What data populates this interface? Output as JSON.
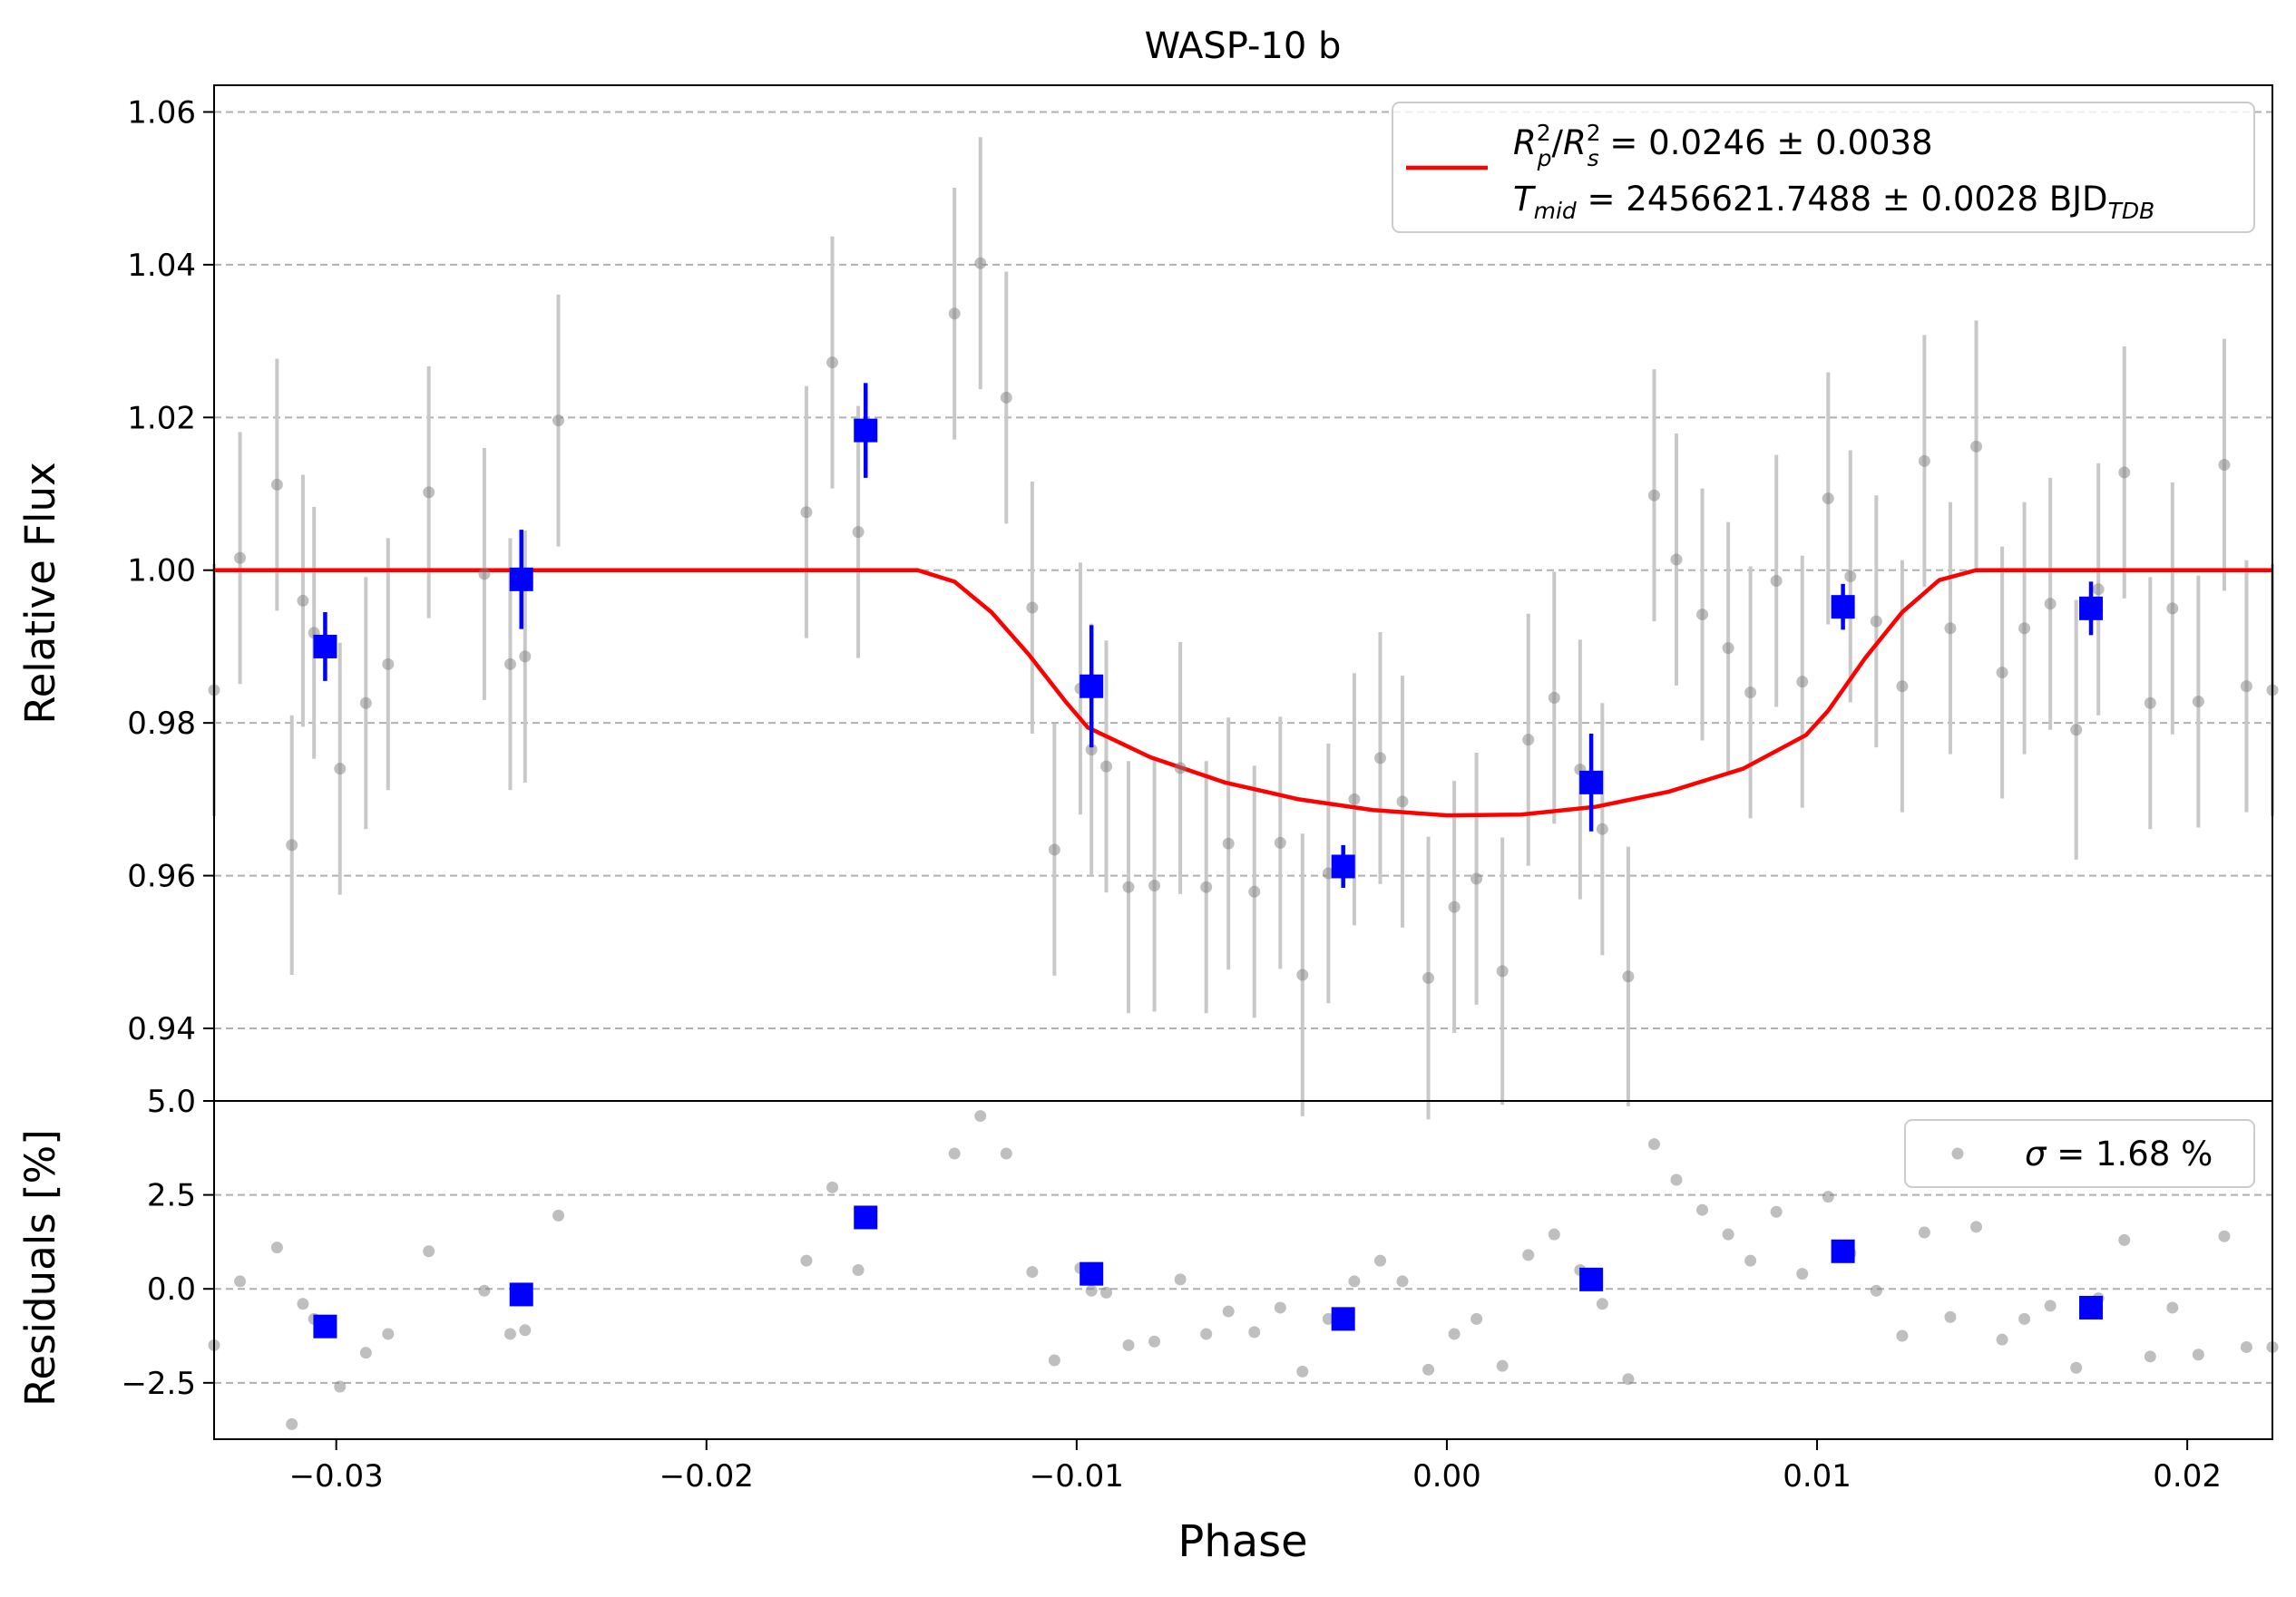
{
  "chart_data": {
    "type": "scatter",
    "title": "WASP-10 b",
    "xlabel": "Phase",
    "xlim": [
      -0.0333,
      0.0223
    ],
    "xticks": [
      -0.03,
      -0.02,
      -0.01,
      0.0,
      0.01,
      0.02
    ],
    "xtick_labels": [
      "−0.03",
      "−0.02",
      "−0.01",
      "0.00",
      "0.01",
      "0.02"
    ],
    "grid": "horizontal dashed",
    "colors": {
      "raw": "#808080",
      "binned": "#0000ff",
      "model": "#ff0000",
      "errbar": "#c8c8c8"
    },
    "top_panel": {
      "ylabel": "Relative Flux",
      "ylim": [
        0.9305,
        1.0635
      ],
      "yticks": [
        0.94,
        0.96,
        0.98,
        1.0,
        1.02,
        1.04,
        1.06
      ],
      "ytick_labels": [
        "0.94",
        "0.96",
        "0.98",
        "1.00",
        "1.02",
        "1.04",
        "1.06"
      ],
      "legend_position": "top-right",
      "legend_line1": {
        "lhs": "R",
        "lhs_sub": "p",
        "lhs_sup": "2",
        "den": "R",
        "den_sub": "s",
        "den_sup": "2",
        "rhs": " = 0.0246 ± 0.0038"
      },
      "legend_line2": {
        "lhs": "T",
        "lhs_sub": "mid",
        "rhs": " = 2456621.7488 ± 0.0028 BJD",
        "rhs_sub": "TDB"
      },
      "model": {
        "name": "transit model",
        "x": [
          -0.0333,
          -0.0143,
          -0.0133,
          -0.0123,
          -0.0113,
          -0.0103,
          -0.0097,
          -0.008,
          -0.006,
          -0.004,
          -0.002,
          0.0,
          0.002,
          0.004,
          0.006,
          0.008,
          0.0097,
          0.0103,
          0.0113,
          0.0123,
          0.0133,
          0.0143,
          0.0223
        ],
        "y": [
          1.0,
          1.0,
          0.9985,
          0.9945,
          0.989,
          0.9828,
          0.9794,
          0.9755,
          0.9722,
          0.97,
          0.9686,
          0.9679,
          0.968,
          0.969,
          0.971,
          0.974,
          0.9784,
          0.9816,
          0.9885,
          0.9945,
          0.9987,
          1.0,
          1.0
        ]
      },
      "raw": {
        "x": [
          -0.0333,
          -0.0326,
          -0.0316,
          -0.0312,
          -0.0309,
          -0.0306,
          -0.0299,
          -0.0292,
          -0.0286,
          -0.0275,
          -0.026,
          -0.0253,
          -0.0249,
          -0.024,
          -0.0173,
          -0.0166,
          -0.0159,
          -0.0133,
          -0.0126,
          -0.0119,
          -0.0112,
          -0.0106,
          -0.0099,
          -0.0096,
          -0.0092,
          -0.0086,
          -0.0079,
          -0.0072,
          -0.0065,
          -0.0059,
          -0.0052,
          -0.0045,
          -0.0039,
          -0.0032,
          -0.0025,
          -0.0018,
          -0.0012,
          -0.0005,
          0.0002,
          0.0008,
          0.0015,
          0.0022,
          0.0029,
          0.0036,
          0.0042,
          0.0049,
          0.0056,
          0.0062,
          0.0069,
          0.0076,
          0.0082,
          0.0089,
          0.0096,
          0.0103,
          0.0109,
          0.0116,
          0.0123,
          0.0129,
          0.0136,
          0.0143,
          0.015,
          0.0156,
          0.0163,
          0.017,
          0.0176,
          0.0183,
          0.019,
          0.0196,
          0.0203,
          0.021,
          0.0216,
          0.0223
        ],
        "y": [
          0.9843,
          1.0016,
          1.0112,
          0.964,
          0.996,
          0.9918,
          0.974,
          0.9826,
          0.9877,
          1.0102,
          0.9995,
          0.9877,
          0.9887,
          1.0196,
          1.0076,
          1.0272,
          1.005,
          1.0336,
          1.0402,
          1.0226,
          0.9951,
          0.9634,
          0.9845,
          0.9765,
          0.9743,
          0.9585,
          0.9587,
          0.9741,
          0.9585,
          0.9642,
          0.9579,
          0.9643,
          0.947,
          0.9603,
          0.97,
          0.9754,
          0.9697,
          0.9466,
          0.9559,
          0.9596,
          0.9475,
          0.9778,
          0.9833,
          0.9739,
          0.9661,
          0.9468,
          1.0098,
          1.0014,
          0.9942,
          0.9898,
          0.984,
          0.9986,
          0.9854,
          1.0094,
          0.9992,
          0.9933,
          0.9848,
          1.0143,
          0.9924,
          1.0162,
          0.9866,
          0.9924,
          0.9956,
          0.9791,
          0.9975,
          1.0128,
          0.9826,
          0.995,
          0.9828,
          1.0138,
          0.9848,
          0.9843
        ],
        "err": [
          0.0165,
          0.0165,
          0.0165,
          0.017,
          0.0165,
          0.0165,
          0.0165,
          0.0165,
          0.0165,
          0.0165,
          0.0165,
          0.0165,
          0.0165,
          0.0165,
          0.0165,
          0.0165,
          0.0165,
          0.0165,
          0.0165,
          0.0165,
          0.0165,
          0.0165,
          0.0165,
          0.0165,
          0.0165,
          0.0165,
          0.0165,
          0.0165,
          0.0165,
          0.0165,
          0.0165,
          0.0165,
          0.0185,
          0.017,
          0.0165,
          0.0165,
          0.0165,
          0.0185,
          0.0165,
          0.0165,
          0.0175,
          0.0165,
          0.0165,
          0.017,
          0.0165,
          0.017,
          0.0165,
          0.0165,
          0.0165,
          0.0165,
          0.0165,
          0.0165,
          0.0165,
          0.0165,
          0.0165,
          0.0165,
          0.0165,
          0.0165,
          0.0165,
          0.0165,
          0.0165,
          0.0165,
          0.0165,
          0.017,
          0.0165,
          0.0165,
          0.0165,
          0.0165,
          0.0165,
          0.0165,
          0.0165,
          0.0165
        ]
      },
      "binned": {
        "x": [
          -0.0303,
          -0.025,
          -0.0157,
          -0.0096,
          -0.0028,
          0.0039,
          0.0107,
          0.0174
        ],
        "y": [
          0.99,
          0.9988,
          1.0183,
          0.9848,
          0.9612,
          0.9722,
          0.9952,
          0.995
        ],
        "err": [
          0.0045,
          0.0065,
          0.0062,
          0.008,
          0.0028,
          0.0064,
          0.003,
          0.0035
        ]
      }
    },
    "bottom_panel": {
      "ylabel": "Residuals [%]",
      "ylim": [
        -4.0,
        5.0
      ],
      "yticks": [
        -2.5,
        0.0,
        2.5,
        5.0
      ],
      "ytick_labels": [
        "−2.5",
        "0.0",
        "2.5",
        "5.0"
      ],
      "legend_position": "top-right",
      "legend": {
        "symbol": "σ",
        "rhs": " = 1.68 %"
      },
      "raw": {
        "x": [
          -0.0333,
          -0.0326,
          -0.0316,
          -0.0312,
          -0.0309,
          -0.0306,
          -0.0299,
          -0.0292,
          -0.0286,
          -0.0275,
          -0.026,
          -0.0253,
          -0.0249,
          -0.024,
          -0.0173,
          -0.0166,
          -0.0159,
          -0.0133,
          -0.0126,
          -0.0119,
          -0.0112,
          -0.0106,
          -0.0099,
          -0.0096,
          -0.0092,
          -0.0086,
          -0.0079,
          -0.0072,
          -0.0065,
          -0.0059,
          -0.0052,
          -0.0045,
          -0.0039,
          -0.0032,
          -0.0025,
          -0.0018,
          -0.0012,
          -0.0005,
          0.0002,
          0.0008,
          0.0015,
          0.0022,
          0.0029,
          0.0036,
          0.0042,
          0.0049,
          0.0056,
          0.0062,
          0.0069,
          0.0076,
          0.0082,
          0.0089,
          0.0096,
          0.0103,
          0.0109,
          0.0116,
          0.0123,
          0.0129,
          0.0136,
          0.0143,
          0.015,
          0.0156,
          0.0163,
          0.017,
          0.0176,
          0.0183,
          0.019,
          0.0196,
          0.0203,
          0.021,
          0.0216,
          0.0223
        ],
        "y": [
          -1.5,
          0.2,
          1.1,
          -3.6,
          -0.4,
          -0.8,
          -2.6,
          -1.7,
          -1.2,
          1.0,
          -0.05,
          -1.2,
          -1.1,
          1.95,
          0.75,
          2.7,
          0.5,
          3.6,
          4.6,
          3.6,
          0.45,
          -1.9,
          0.55,
          -0.05,
          -0.1,
          -1.5,
          -1.4,
          0.25,
          -1.2,
          -0.6,
          -1.15,
          -0.5,
          -2.2,
          -0.8,
          0.2,
          0.75,
          0.2,
          -2.15,
          -1.2,
          -0.8,
          -2.05,
          0.9,
          1.45,
          0.5,
          -0.4,
          -2.4,
          3.85,
          2.9,
          2.1,
          1.45,
          0.75,
          2.05,
          0.4,
          2.45,
          0.95,
          -0.05,
          -1.25,
          1.5,
          -0.75,
          1.65,
          -1.35,
          -0.8,
          -0.45,
          -2.1,
          -0.25,
          1.3,
          -1.8,
          -0.5,
          -1.75,
          1.4,
          -1.55,
          -1.55
        ]
      },
      "binned": {
        "x": [
          -0.0303,
          -0.025,
          -0.0157,
          -0.0096,
          -0.0028,
          0.0039,
          0.0107,
          0.0174
        ],
        "y": [
          -1.0,
          -0.15,
          1.9,
          0.4,
          -0.8,
          0.25,
          1.0,
          -0.5
        ]
      }
    }
  }
}
